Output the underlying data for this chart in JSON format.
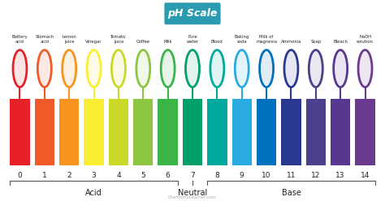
{
  "title": "pH Scale",
  "title_bg": "#2b9bb0",
  "title_color": "white",
  "ph_values": [
    0,
    1,
    2,
    3,
    4,
    5,
    6,
    7,
    8,
    9,
    10,
    11,
    12,
    13,
    14
  ],
  "bar_colors": [
    "#e82027",
    "#f05a28",
    "#f7941e",
    "#f9ee32",
    "#cad928",
    "#8dc640",
    "#3ab449",
    "#009f6b",
    "#00a99d",
    "#29abe2",
    "#0071bc",
    "#2b388f",
    "#4a408e",
    "#573891",
    "#6a3a8e"
  ],
  "circle_colors": [
    "#e82027",
    "#f05a28",
    "#f7941e",
    "#f9ee32",
    "#cad928",
    "#8dc640",
    "#3ab449",
    "#009f6b",
    "#00a99d",
    "#29abe2",
    "#0071bc",
    "#2b388f",
    "#4a408e",
    "#573891",
    "#6a3a8e"
  ],
  "labels": [
    "Battery\nacid",
    "Stomach\nacid",
    "Lemon\njuice",
    "Vinegar",
    "Tomato\njuice",
    "Coffee",
    "Milk",
    "Pure\nwater",
    "Blood",
    "Baking\nsoda",
    "Milk of\nmagnesia",
    "Ammonia",
    "Soap",
    "Bleach",
    "NaOH\nsolution"
  ],
  "acid_label": "Acid",
  "neutral_label": "Neutral",
  "base_label": "Base",
  "watermark": "ChemistryLearner.com",
  "bg_color": "#ffffff"
}
